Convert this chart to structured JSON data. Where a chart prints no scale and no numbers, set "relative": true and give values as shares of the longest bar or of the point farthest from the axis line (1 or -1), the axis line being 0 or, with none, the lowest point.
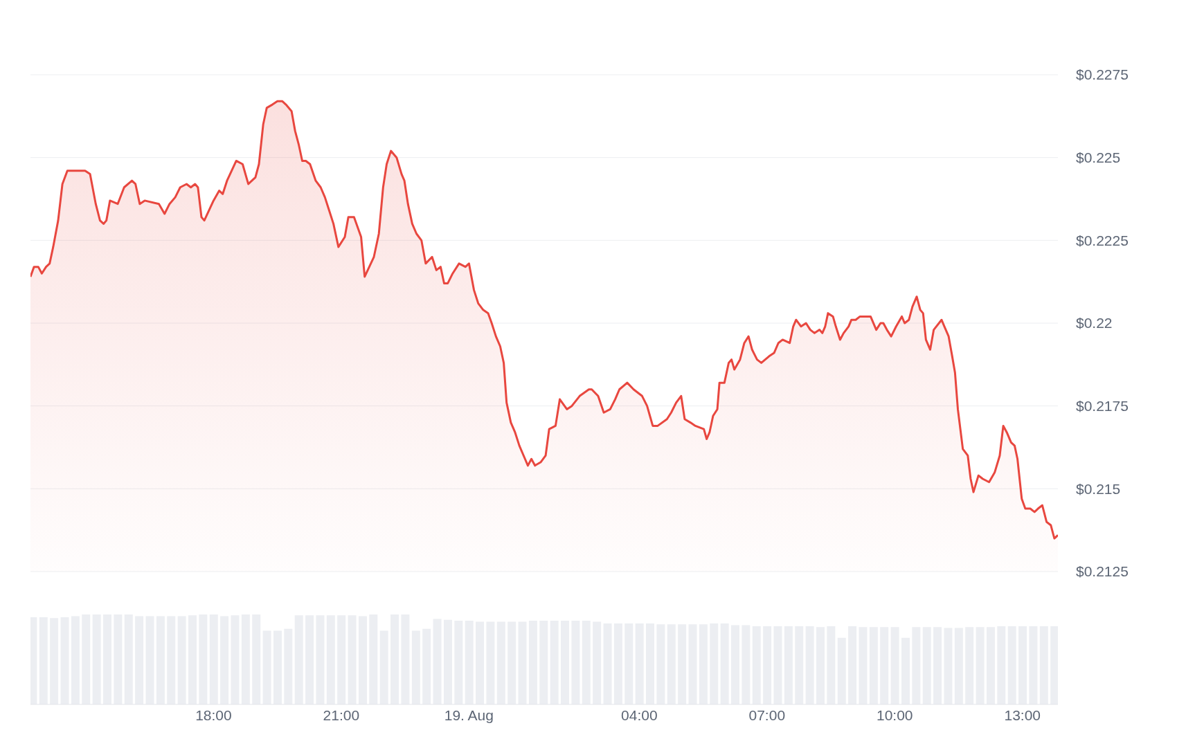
{
  "chart_data": [
    {
      "type": "area",
      "xlim": [
        "--08-18T13:42",
        "--08-19T13:50"
      ],
      "ylim": [
        0.2125,
        0.2275
      ],
      "yticks": [
        {
          "value": 0.2125,
          "label": "$0.2125"
        },
        {
          "value": 0.215,
          "label": "$0.215"
        },
        {
          "value": 0.2175,
          "label": "$0.2175"
        },
        {
          "value": 0.22,
          "label": "$0.22"
        },
        {
          "value": 0.2225,
          "label": "$0.2225"
        },
        {
          "value": 0.225,
          "label": "$0.225"
        },
        {
          "value": 0.2275,
          "label": "$0.2275"
        }
      ],
      "grid": "y",
      "marker": "none",
      "tick_labels": "y",
      "series": [
        {
          "color": "#e8473f",
          "x": [
            "--08-18T13:42",
            "--08-18T13:47",
            "--08-18T13:53",
            "--08-18T13:58",
            "--08-18T14:04",
            "--08-18T14:09",
            "--08-18T14:14",
            "--08-18T14:21",
            "--08-18T14:27",
            "--08-18T14:34",
            "--08-18T14:59",
            "--08-18T15:06",
            "--08-18T15:14",
            "--08-18T15:20",
            "--08-18T15:25",
            "--08-18T15:29",
            "--08-18T15:34",
            "--08-18T15:45",
            "--08-18T15:54",
            "--08-18T16:05",
            "--08-18T16:10",
            "--08-18T16:16",
            "--08-18T16:23",
            "--08-18T16:43",
            "--08-18T16:51",
            "--08-18T16:58",
            "--08-18T17:06",
            "--08-18T17:13",
            "--08-18T17:22",
            "--08-18T17:28",
            "--08-18T17:34",
            "--08-18T17:38",
            "--08-18T17:43",
            "--08-18T17:47",
            "--08-18T18:00",
            "--08-18T18:08",
            "--08-18T18:13",
            "--08-18T18:19",
            "--08-18T18:32",
            "--08-18T18:41",
            "--08-18T18:49",
            "--08-18T18:59",
            "--08-18T19:04",
            "--08-18T19:10",
            "--08-18T19:15",
            "--08-18T19:23",
            "--08-18T19:30",
            "--08-18T19:37",
            "--08-18T19:42",
            "--08-18T19:50",
            "--08-18T19:55",
            "--08-18T20:00",
            "--08-18T20:05",
            "--08-18T20:10",
            "--08-18T20:16",
            "--08-18T20:24",
            "--08-18T20:31",
            "--08-18T20:37",
            "--08-18T20:43",
            "--08-18T20:49",
            "--08-18T20:56",
            "--08-18T21:05",
            "--08-18T21:10",
            "--08-18T21:18",
            "--08-18T21:28",
            "--08-18T21:33",
            "--08-18T21:46",
            "--08-18T21:53",
            "--08-18T21:59",
            "--08-18T22:04",
            "--08-18T22:10",
            "--08-18T22:18",
            "--08-18T22:25",
            "--08-18T22:29",
            "--08-18T22:34",
            "--08-18T22:40",
            "--08-18T22:46",
            "--08-18T22:53",
            "--08-18T22:59",
            "--08-18T23:08",
            "--08-18T23:14",
            "--08-18T23:20",
            "--08-18T23:25",
            "--08-18T23:30",
            "--08-18T23:37",
            "--08-18T23:46",
            "--08-18T23:55",
            "--08-19T00:00",
            "--08-19T00:07",
            "--08-19T00:13",
            "--08-19T00:20",
            "--08-19T00:27",
            "--08-19T00:32",
            "--08-19T00:38",
            "--08-19T00:44",
            "--08-19T00:49",
            "--08-19T00:53",
            "--08-19T00:59",
            "--08-19T01:05",
            "--08-19T01:11",
            "--08-19T01:19",
            "--08-19T01:23",
            "--08-19T01:28",
            "--08-19T01:33",
            "--08-19T01:41",
            "--08-19T01:48",
            "--08-19T01:53",
            "--08-19T02:02",
            "--08-19T02:08",
            "--08-19T02:18",
            "--08-19T02:25",
            "--08-19T02:36",
            "--08-19T02:49",
            "--08-19T02:53",
            "--08-19T03:02",
            "--08-19T03:10",
            "--08-19T03:19",
            "--08-19T03:26",
            "--08-19T03:32",
            "--08-19T03:43",
            "--08-19T03:52",
            "--08-19T04:04",
            "--08-19T04:11",
            "--08-19T04:15",
            "--08-19T04:19",
            "--08-19T04:26",
            "--08-19T04:39",
            "--08-19T04:45",
            "--08-19T04:52",
            "--08-19T04:59",
            "--08-19T05:04",
            "--08-19T05:12",
            "--08-19T05:19",
            "--08-19T05:31",
            "--08-19T05:35",
            "--08-19T05:39",
            "--08-19T05:44",
            "--08-19T05:50",
            "--08-19T05:53",
            "--08-19T06:00",
            "--08-19T06:06",
            "--08-19T06:10",
            "--08-19T06:14",
            "--08-19T06:22",
            "--08-19T06:28",
            "--08-19T06:34",
            "--08-19T06:39",
            "--08-19T06:46",
            "--08-19T06:52",
            "--08-19T07:03",
            "--08-19T07:10",
            "--08-19T07:16",
            "--08-19T07:22",
            "--08-19T07:32",
            "--08-19T07:37",
            "--08-19T07:41",
            "--08-19T07:48",
            "--08-19T07:55",
            "--08-19T08:01",
            "--08-19T08:07",
            "--08-19T08:14",
            "--08-19T08:18",
            "--08-19T08:22",
            "--08-19T08:26",
            "--08-19T08:33",
            "--08-19T08:37",
            "--08-19T08:43",
            "--08-19T08:48",
            "--08-19T08:55",
            "--08-19T08:59",
            "--08-19T09:05",
            "--08-19T09:11",
            "--08-19T09:18",
            "--08-19T09:26",
            "--08-19T09:34",
            "--08-19T09:40",
            "--08-19T09:44",
            "--08-19T09:49",
            "--08-19T09:55",
            "--08-19T10:02",
            "--08-19T10:10",
            "--08-19T10:14",
            "--08-19T10:20",
            "--08-19T10:25",
            "--08-19T10:31",
            "--08-19T10:36",
            "--08-19T10:40",
            "--08-19T10:44",
            "--08-19T10:50",
            "--08-19T10:55",
            "--08-19T11:06",
            "--08-19T11:10",
            "--08-19T11:16",
            "--08-19T11:21",
            "--08-19T11:25",
            "--08-19T11:29",
            "--08-19T11:36",
            "--08-19T11:43",
            "--08-19T11:47",
            "--08-19T11:51",
            "--08-19T11:58",
            "--08-19T12:04",
            "--08-19T12:13",
            "--08-19T12:21",
            "--08-19T12:28",
            "--08-19T12:33",
            "--08-19T12:38",
            "--08-19T12:44",
            "--08-19T12:49",
            "--08-19T12:53",
            "--08-19T12:59",
            "--08-19T13:04",
            "--08-19T13:11",
            "--08-19T13:17",
            "--08-19T13:22",
            "--08-19T13:28",
            "--08-19T13:34",
            "--08-19T13:40",
            "--08-19T13:45",
            "--08-19T13:50"
          ],
          "values": [
            0.2214,
            0.2217,
            0.2217,
            0.2215,
            0.2217,
            0.2218,
            0.2223,
            0.2231,
            0.2242,
            0.2246,
            0.2246,
            0.2245,
            0.2236,
            0.2231,
            0.223,
            0.2231,
            0.2237,
            0.2236,
            0.2241,
            0.2243,
            0.2242,
            0.2236,
            0.2237,
            0.2236,
            0.2233,
            0.2236,
            0.2238,
            0.2241,
            0.2242,
            0.2241,
            0.2242,
            0.2241,
            0.2232,
            0.2231,
            0.2237,
            0.224,
            0.2239,
            0.2243,
            0.2249,
            0.2248,
            0.2242,
            0.2244,
            0.2248,
            0.226,
            0.2265,
            0.2266,
            0.2267,
            0.2267,
            0.2266,
            0.2264,
            0.2258,
            0.2254,
            0.2249,
            0.2249,
            0.2248,
            0.2243,
            0.2241,
            0.2238,
            0.2234,
            0.223,
            0.2223,
            0.2226,
            0.2232,
            0.2232,
            0.2226,
            0.2214,
            0.222,
            0.2227,
            0.2241,
            0.2248,
            0.2252,
            0.225,
            0.2245,
            0.2243,
            0.2236,
            0.223,
            0.2227,
            0.2225,
            0.2218,
            0.222,
            0.2216,
            0.2217,
            0.2212,
            0.2212,
            0.2215,
            0.2218,
            0.2217,
            0.2218,
            0.221,
            0.2206,
            0.2204,
            0.2203,
            0.22,
            0.2196,
            0.2193,
            0.2188,
            0.2176,
            0.217,
            0.2167,
            0.2163,
            0.2159,
            0.2157,
            0.2159,
            0.2157,
            0.2158,
            0.216,
            0.2168,
            0.2169,
            0.2177,
            0.2174,
            0.2175,
            0.2178,
            0.218,
            0.218,
            0.2178,
            0.2173,
            0.2174,
            0.2177,
            0.218,
            0.2182,
            0.218,
            0.2178,
            0.2175,
            0.2172,
            0.2169,
            0.2169,
            0.2171,
            0.2173,
            0.2176,
            0.2178,
            0.2171,
            0.217,
            0.2169,
            0.2168,
            0.2165,
            0.2167,
            0.2172,
            0.2174,
            0.2182,
            0.2182,
            0.2188,
            0.2189,
            0.2186,
            0.2189,
            0.2194,
            0.2196,
            0.2192,
            0.2189,
            0.2188,
            0.219,
            0.2191,
            0.2194,
            0.2195,
            0.2194,
            0.2199,
            0.2201,
            0.2199,
            0.22,
            0.2198,
            0.2197,
            0.2198,
            0.2197,
            0.2199,
            0.2203,
            0.2202,
            0.2199,
            0.2195,
            0.2197,
            0.2199,
            0.2201,
            0.2201,
            0.2202,
            0.2202,
            0.2202,
            0.2198,
            0.22,
            0.22,
            0.2198,
            0.2196,
            0.2199,
            0.2202,
            0.22,
            0.2201,
            0.2205,
            0.2208,
            0.2204,
            0.2203,
            0.2195,
            0.2192,
            0.2198,
            0.2201,
            0.2199,
            0.2196,
            0.219,
            0.2185,
            0.2174,
            0.2162,
            0.216,
            0.2153,
            0.2149,
            0.2154,
            0.2153,
            0.2152,
            0.2155,
            0.216,
            0.2169,
            0.2167,
            0.2164,
            0.2163,
            0.2159,
            0.2147,
            0.2144,
            0.2144,
            0.2143,
            0.2144,
            0.2145,
            0.214,
            0.2139,
            0.2135,
            0.2136
          ]
        }
      ]
    },
    {
      "type": "bar",
      "relative": true,
      "tick_labels": "x",
      "xlim": [
        "--08-18T13:42",
        "--08-19T13:50"
      ],
      "xticks": [
        {
          "value": "--08-18T18:00",
          "label": "18:00"
        },
        {
          "value": "--08-18T21:00",
          "label": "21:00"
        },
        {
          "value": "--08-19T00:00",
          "label": "19. Aug"
        },
        {
          "value": "--08-19T04:00",
          "label": "04:00"
        },
        {
          "value": "--08-19T07:00",
          "label": "07:00"
        },
        {
          "value": "--08-19T10:00",
          "label": "10:00"
        },
        {
          "value": "--08-19T13:00",
          "label": "13:00"
        }
      ],
      "series": [
        {
          "color": "#eceef2",
          "x": [
            "--08-18T13:45",
            "--08-18T14:00",
            "--08-18T14:15",
            "--08-18T14:30",
            "--08-18T14:45",
            "--08-18T15:00",
            "--08-18T15:15",
            "--08-18T15:30",
            "--08-18T15:45",
            "--08-18T16:00",
            "--08-18T16:15",
            "--08-18T16:30",
            "--08-18T16:45",
            "--08-18T17:00",
            "--08-18T17:15",
            "--08-18T17:30",
            "--08-18T17:45",
            "--08-18T18:00",
            "--08-18T18:15",
            "--08-18T18:30",
            "--08-18T18:45",
            "--08-18T19:00",
            "--08-18T19:15",
            "--08-18T19:30",
            "--08-18T19:45",
            "--08-18T20:00",
            "--08-18T20:15",
            "--08-18T20:30",
            "--08-18T20:45",
            "--08-18T21:00",
            "--08-18T21:15",
            "--08-18T21:30",
            "--08-18T21:45",
            "--08-18T22:00",
            "--08-18T22:15",
            "--08-18T22:30",
            "--08-18T22:45",
            "--08-18T23:00",
            "--08-18T23:15",
            "--08-18T23:30",
            "--08-18T23:45",
            "--08-19T00:00",
            "--08-19T00:15",
            "--08-19T00:30",
            "--08-19T00:45",
            "--08-19T01:00",
            "--08-19T01:15",
            "--08-19T01:30",
            "--08-19T01:45",
            "--08-19T02:00",
            "--08-19T02:15",
            "--08-19T02:30",
            "--08-19T02:45",
            "--08-19T03:00",
            "--08-19T03:15",
            "--08-19T03:30",
            "--08-19T03:45",
            "--08-19T04:00",
            "--08-19T04:15",
            "--08-19T04:30",
            "--08-19T04:45",
            "--08-19T05:00",
            "--08-19T05:15",
            "--08-19T05:30",
            "--08-19T05:45",
            "--08-19T06:00",
            "--08-19T06:15",
            "--08-19T06:30",
            "--08-19T06:45",
            "--08-19T07:00",
            "--08-19T07:15",
            "--08-19T07:30",
            "--08-19T07:45",
            "--08-19T08:00",
            "--08-19T08:15",
            "--08-19T08:30",
            "--08-19T08:45",
            "--08-19T09:00",
            "--08-19T09:15",
            "--08-19T09:30",
            "--08-19T09:45",
            "--08-19T10:00",
            "--08-19T10:15",
            "--08-19T10:30",
            "--08-19T10:45",
            "--08-19T11:00",
            "--08-19T11:15",
            "--08-19T11:30",
            "--08-19T11:45",
            "--08-19T12:00",
            "--08-19T12:15",
            "--08-19T12:30",
            "--08-19T12:45",
            "--08-19T13:00",
            "--08-19T13:15",
            "--08-19T13:30",
            "--08-19T13:45"
          ],
          "values": [
            0.97,
            0.97,
            0.96,
            0.97,
            0.98,
            1,
            1,
            1,
            1,
            1,
            0.98,
            0.98,
            0.98,
            0.98,
            0.98,
            0.99,
            1,
            1,
            0.98,
            0.99,
            1,
            1,
            0.82,
            0.82,
            0.84,
            0.99,
            0.99,
            0.99,
            0.99,
            0.99,
            0.99,
            0.98,
            1,
            0.82,
            1,
            1,
            0.82,
            0.84,
            0.95,
            0.94,
            0.93,
            0.93,
            0.92,
            0.92,
            0.92,
            0.92,
            0.92,
            0.93,
            0.93,
            0.93,
            0.93,
            0.93,
            0.93,
            0.92,
            0.9,
            0.9,
            0.9,
            0.9,
            0.9,
            0.89,
            0.89,
            0.89,
            0.89,
            0.89,
            0.9,
            0.9,
            0.88,
            0.88,
            0.87,
            0.87,
            0.87,
            0.87,
            0.87,
            0.87,
            0.86,
            0.87,
            0.74,
            0.87,
            0.86,
            0.86,
            0.86,
            0.86,
            0.74,
            0.86,
            0.86,
            0.86,
            0.85,
            0.85,
            0.86,
            0.86,
            0.86,
            0.87,
            0.87,
            0.87,
            0.87,
            0.87,
            0.87
          ]
        }
      ]
    }
  ]
}
